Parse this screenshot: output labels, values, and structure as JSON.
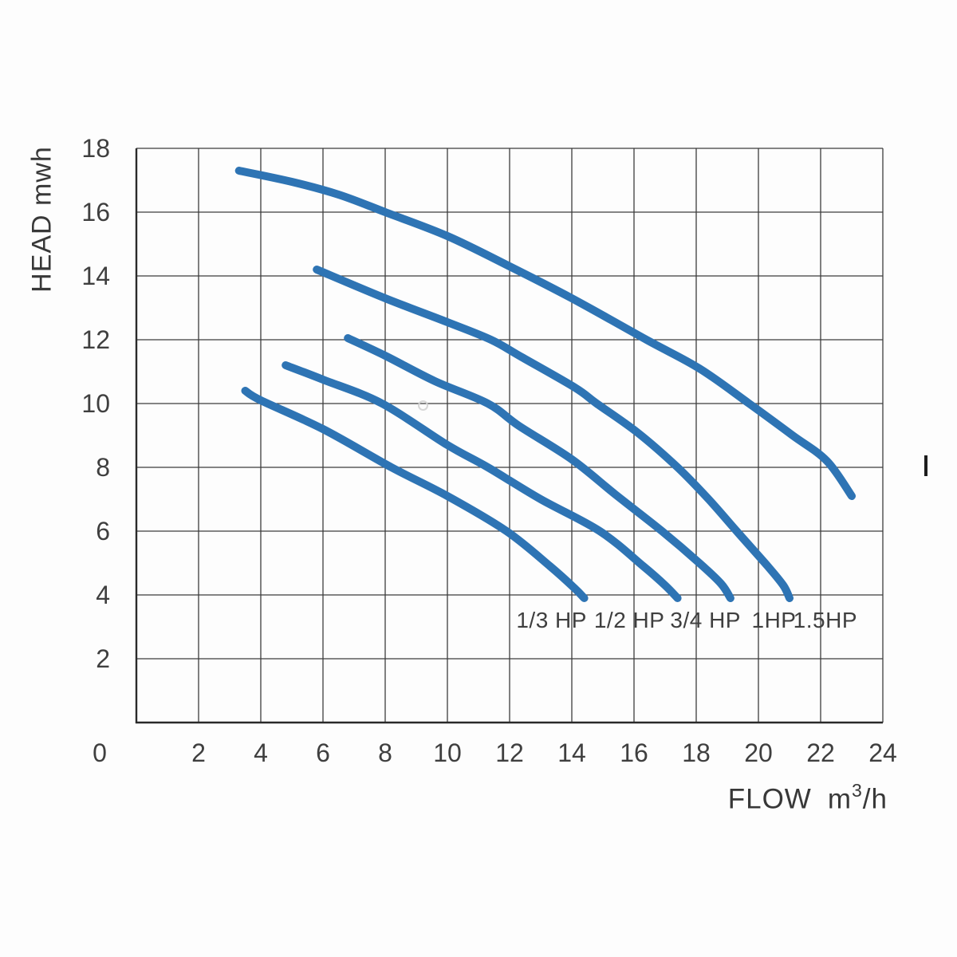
{
  "chart": {
    "y_axis_title": "HEAD mwh",
    "x_title_word1": "FLOW",
    "x_title_word2": "m",
    "x_title_sup": "3",
    "x_title_post": "/h",
    "origin_label": "0"
  },
  "chart_data": {
    "type": "line",
    "title": "",
    "xlabel": "FLOW m³/h",
    "ylabel": "HEAD mwh",
    "xlim": [
      0,
      24
    ],
    "ylim": [
      0,
      18
    ],
    "x_ticks": [
      2,
      4,
      6,
      8,
      10,
      12,
      14,
      16,
      18,
      20,
      22,
      24
    ],
    "y_ticks": [
      2,
      4,
      6,
      8,
      10,
      12,
      14,
      16,
      18
    ],
    "grid": true,
    "legend_position": "below-curve-ends",
    "grid_color": "#3c3c3c",
    "axis_color": "#2a2a2a",
    "curve_color": "#2E74B4",
    "text_color": "#3f3f3f",
    "series": [
      {
        "name": "1/3 HP",
        "label": "1/3 HP",
        "label_anchor": {
          "flow": 13.35,
          "head": 3.2
        },
        "points_flow_head": [
          [
            3.5,
            10.4
          ],
          [
            4.0,
            10.1
          ],
          [
            6.0,
            9.2
          ],
          [
            8.2,
            8.0
          ],
          [
            10.0,
            7.1
          ],
          [
            11.9,
            6.0
          ],
          [
            13.3,
            4.9
          ],
          [
            14.1,
            4.2
          ],
          [
            14.4,
            3.9
          ]
        ]
      },
      {
        "name": "1/2 HP",
        "label": "1/2 HP",
        "label_anchor": {
          "flow": 15.85,
          "head": 3.2
        },
        "points_flow_head": [
          [
            4.8,
            11.2
          ],
          [
            6.0,
            10.75
          ],
          [
            7.9,
            10.0
          ],
          [
            10.0,
            8.7
          ],
          [
            11.3,
            8.0
          ],
          [
            13.0,
            7.0
          ],
          [
            14.9,
            6.0
          ],
          [
            16.3,
            4.9
          ],
          [
            17.0,
            4.3
          ],
          [
            17.4,
            3.9
          ]
        ]
      },
      {
        "name": "3/4 HP",
        "label": "3/4 HP",
        "label_anchor": {
          "flow": 18.3,
          "head": 3.2
        },
        "points_flow_head": [
          [
            6.8,
            12.05
          ],
          [
            8.0,
            11.5
          ],
          [
            9.6,
            10.7
          ],
          [
            11.3,
            10.0
          ],
          [
            12.3,
            9.3
          ],
          [
            14.0,
            8.25
          ],
          [
            15.4,
            7.15
          ],
          [
            16.9,
            6.0
          ],
          [
            18.1,
            5.0
          ],
          [
            18.8,
            4.35
          ],
          [
            19.1,
            3.9
          ]
        ]
      },
      {
        "name": "1HP",
        "label": "1HP",
        "label_anchor": {
          "flow": 20.5,
          "head": 3.2
        },
        "points_flow_head": [
          [
            5.8,
            14.2
          ],
          [
            8.0,
            13.3
          ],
          [
            10.0,
            12.55
          ],
          [
            11.4,
            12.0
          ],
          [
            12.4,
            11.45
          ],
          [
            14.1,
            10.5
          ],
          [
            14.8,
            10.0
          ],
          [
            16.1,
            9.1
          ],
          [
            17.4,
            8.0
          ],
          [
            18.4,
            7.0
          ],
          [
            19.3,
            6.0
          ],
          [
            20.3,
            4.9
          ],
          [
            20.8,
            4.3
          ],
          [
            21.0,
            3.9
          ]
        ]
      },
      {
        "name": "1.5HP",
        "label": "1.5HP",
        "label_anchor": {
          "flow": 22.15,
          "head": 3.2
        },
        "points_flow_head": [
          [
            3.3,
            17.3
          ],
          [
            5.0,
            16.95
          ],
          [
            6.5,
            16.55
          ],
          [
            8.0,
            16.0
          ],
          [
            10.0,
            15.25
          ],
          [
            12.0,
            14.3
          ],
          [
            14.0,
            13.3
          ],
          [
            16.4,
            12.0
          ],
          [
            18.1,
            11.1
          ],
          [
            19.7,
            10.0
          ],
          [
            21.1,
            9.0
          ],
          [
            22.2,
            8.2
          ],
          [
            23.0,
            7.1
          ]
        ]
      }
    ]
  }
}
